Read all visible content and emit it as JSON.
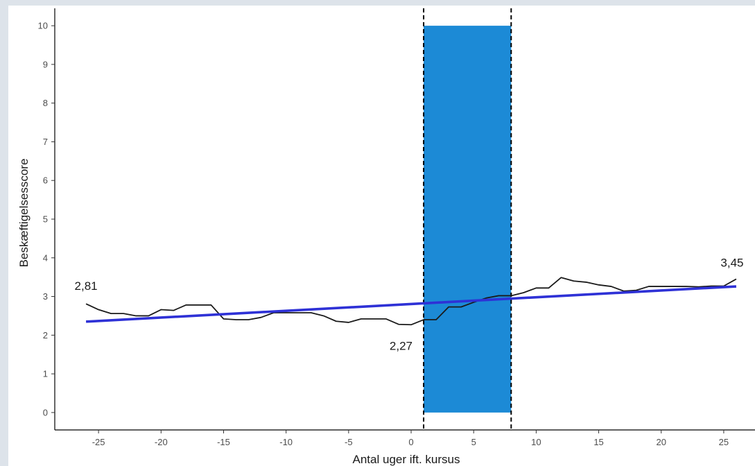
{
  "chart_data": {
    "type": "line",
    "xlabel": "Antal uger ift. kursus",
    "ylabel": "Beskæftigelsesscore",
    "xlim": [
      -28.5,
      27.5
    ],
    "ylim": [
      -0.45,
      10.45
    ],
    "x_ticks": [
      -25,
      -20,
      -15,
      -10,
      -5,
      0,
      5,
      10,
      15,
      20,
      25
    ],
    "y_ticks": [
      0,
      1,
      2,
      3,
      4,
      5,
      6,
      7,
      8,
      9,
      10
    ],
    "grid": false,
    "shaded_region": {
      "x_start": 1,
      "x_end": 8,
      "y_start": 0,
      "y_end": 10,
      "color": "#1c8ad6"
    },
    "vlines": [
      1,
      8
    ],
    "series": [
      {
        "color": "#1a1a1a",
        "x": [
          -26,
          -25,
          -24,
          -23,
          -22,
          -21,
          -20,
          -19,
          -18,
          -17,
          -16,
          -15,
          -14,
          -13,
          -12,
          -11,
          -10,
          -9,
          -8,
          -7,
          -6,
          -5,
          -4,
          -3,
          -2,
          -1,
          0,
          1,
          2,
          3,
          4,
          5,
          6,
          7,
          8,
          9,
          10,
          11,
          12,
          13,
          14,
          15,
          16,
          17,
          18,
          19,
          20,
          21,
          22,
          23,
          24,
          25,
          26
        ],
        "y": [
          2.81,
          2.66,
          2.56,
          2.56,
          2.5,
          2.5,
          2.66,
          2.64,
          2.78,
          2.78,
          2.78,
          2.42,
          2.4,
          2.4,
          2.46,
          2.58,
          2.58,
          2.58,
          2.58,
          2.5,
          2.36,
          2.33,
          2.42,
          2.42,
          2.42,
          2.28,
          2.27,
          2.4,
          2.4,
          2.73,
          2.73,
          2.85,
          2.96,
          3.02,
          3.02,
          3.1,
          3.22,
          3.22,
          3.49,
          3.4,
          3.37,
          3.3,
          3.26,
          3.14,
          3.16,
          3.26,
          3.26,
          3.26,
          3.26,
          3.25,
          3.27,
          3.27,
          3.45
        ]
      },
      {
        "color": "#2e31d6",
        "x": [
          -26,
          26
        ],
        "y": [
          2.35,
          3.26
        ]
      }
    ],
    "annotations": [
      {
        "text": "2,81",
        "x": -26,
        "y": 2.81,
        "anchor": "middle",
        "dx": 0,
        "dy": -20
      },
      {
        "text": "2,27",
        "x": 0,
        "y": 2.27,
        "anchor": "end",
        "dx": 2,
        "dy": 36
      },
      {
        "text": "3,45",
        "x": 26,
        "y": 3.45,
        "anchor": "middle",
        "dx": -6,
        "dy": -18
      }
    ]
  }
}
